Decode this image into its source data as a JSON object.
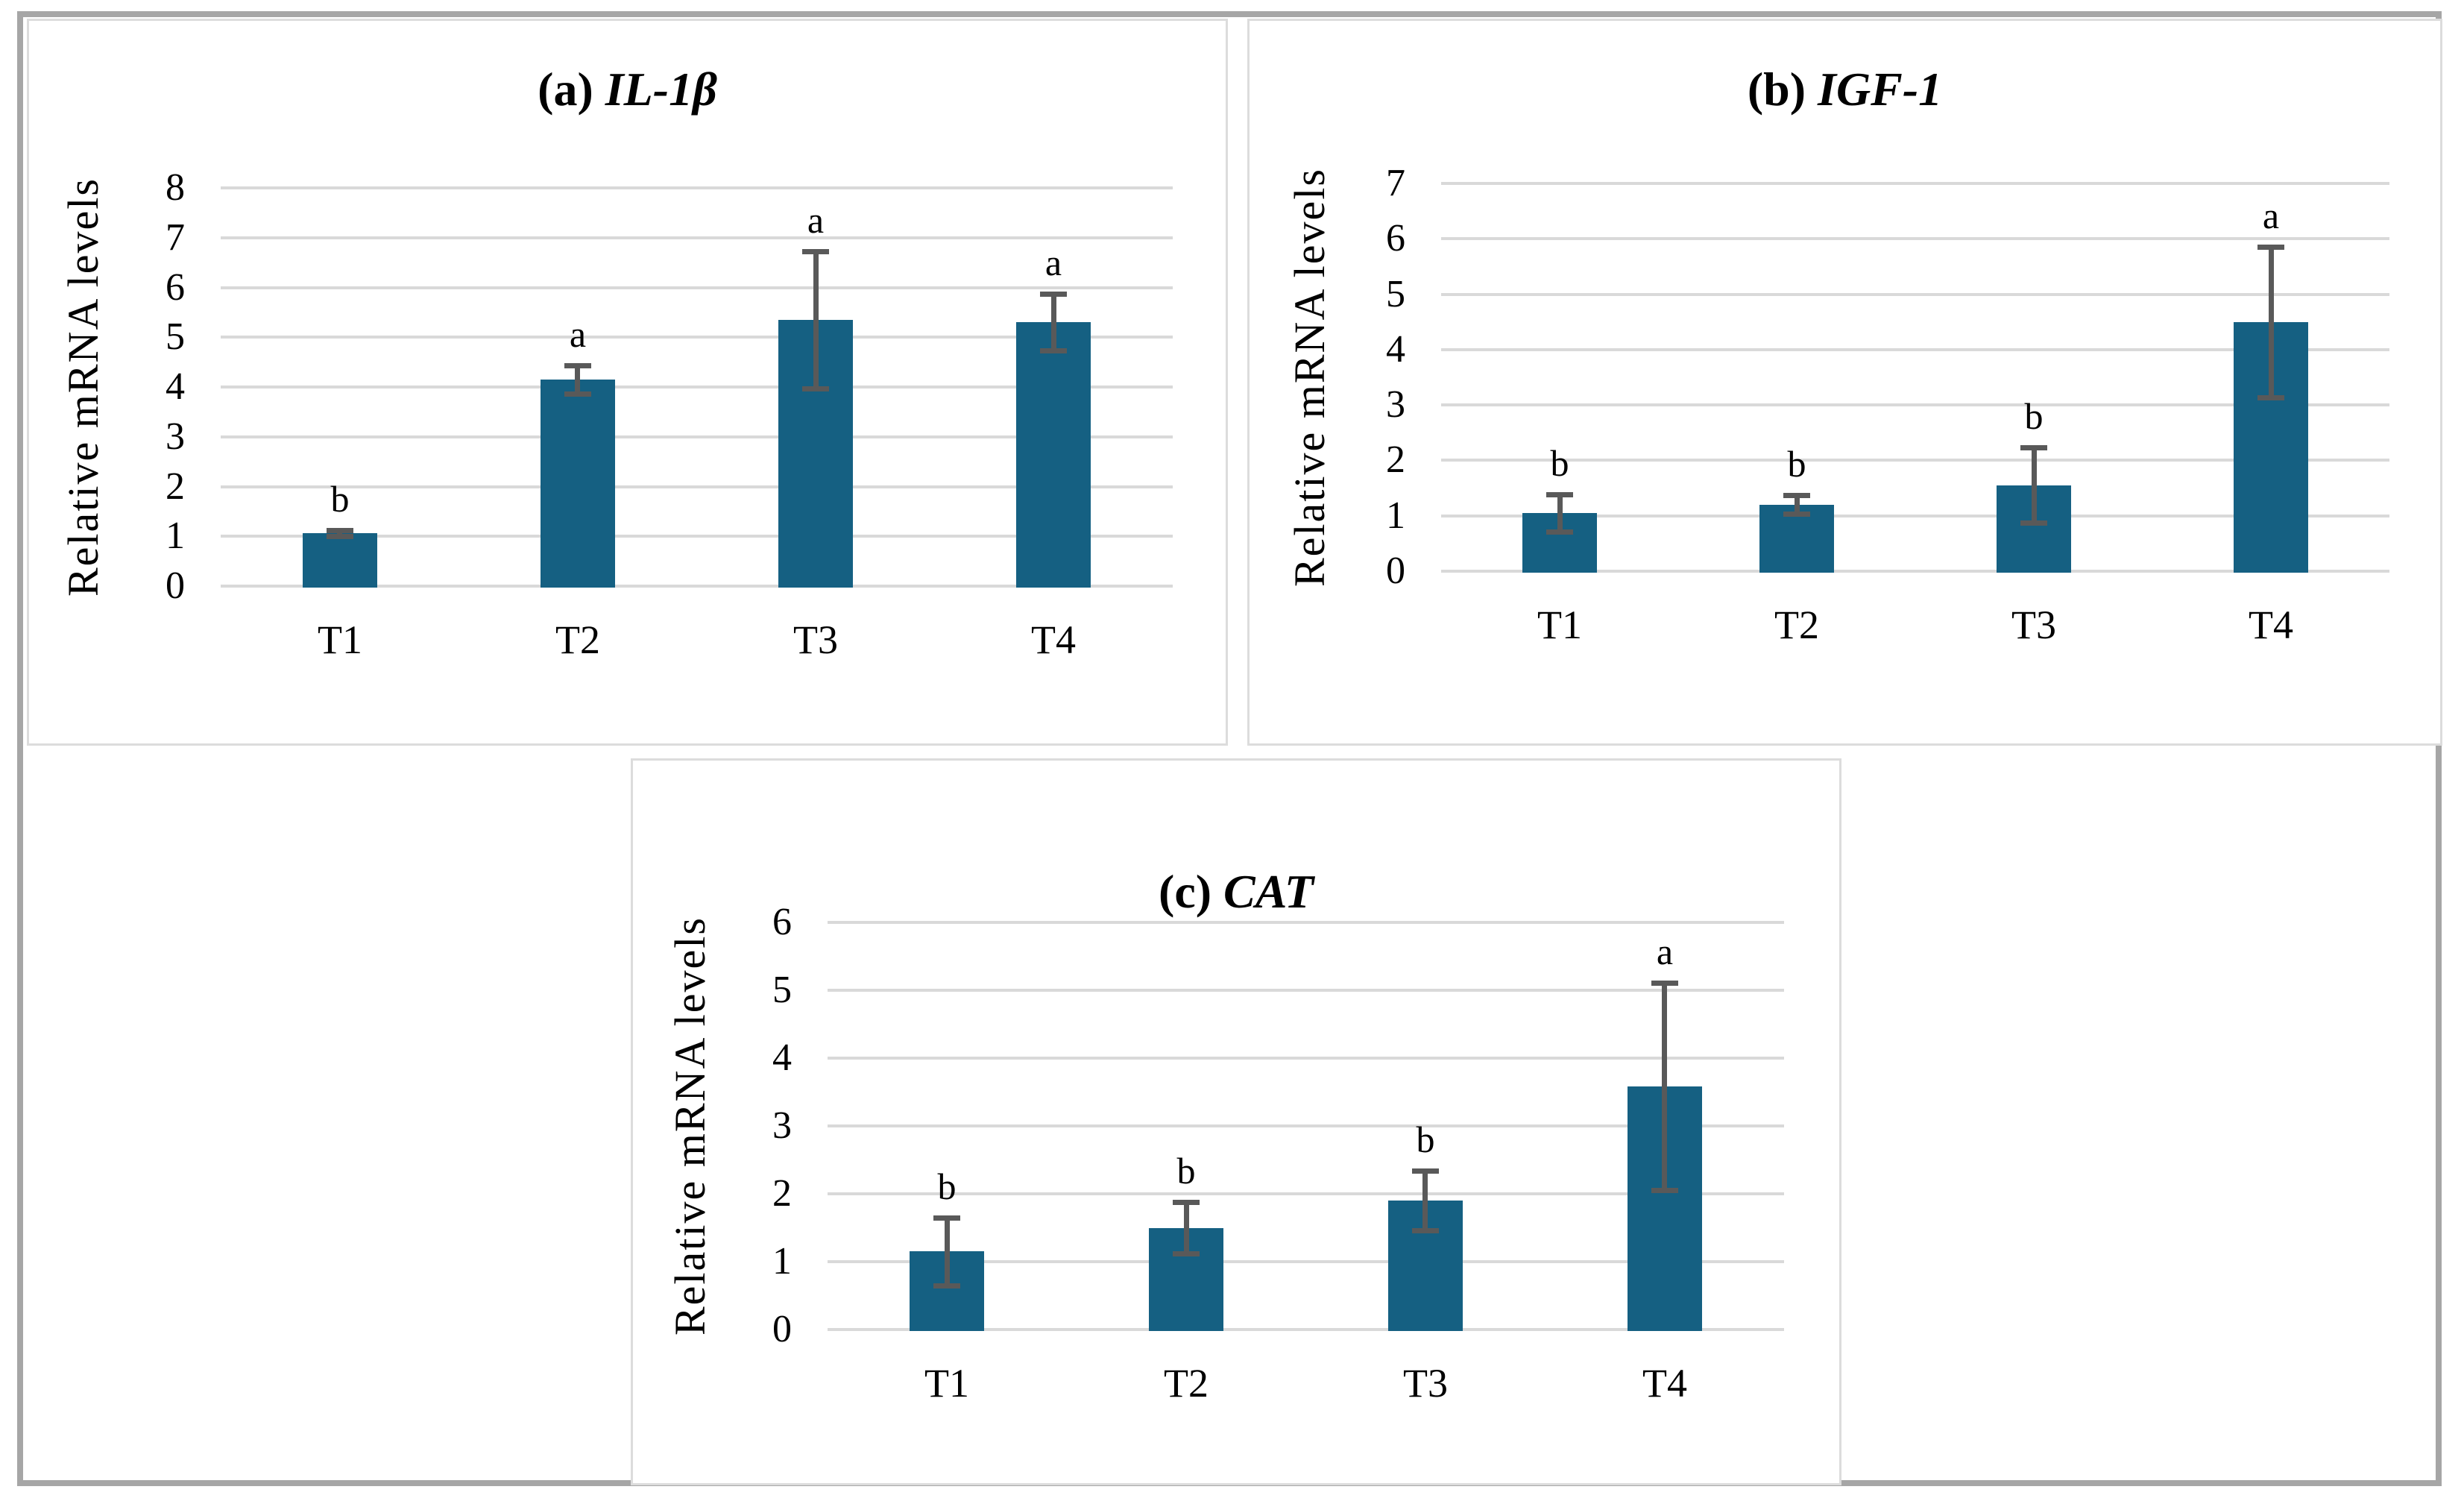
{
  "figure": {
    "description_visible_text_only": true,
    "y_axis_title": "Relative mRNA levels"
  },
  "colors": {
    "bar_fill": "#156082",
    "error_bar": "#595959",
    "gridline": "#d9d9d9",
    "panel_border": "#dcdcdc",
    "outer_border": "#a6a6a6",
    "text": "#000000"
  },
  "chart_data": [
    {
      "type": "bar",
      "title_prefix": "(a)",
      "title_gene": "IL-1β",
      "ylabel": "Relative mRNA levels",
      "xlabel": "",
      "categories": [
        "T1",
        "T2",
        "T3",
        "T4"
      ],
      "values": [
        1.07,
        4.15,
        5.35,
        5.3
      ],
      "errors": [
        0.06,
        0.28,
        1.38,
        0.57
      ],
      "sig_letters": [
        "b",
        "a",
        "a",
        "a"
      ],
      "yticks": [
        0,
        1,
        2,
        3,
        4,
        5,
        6,
        7,
        8
      ],
      "ylim": [
        0,
        8
      ],
      "grid": true,
      "legend": false
    },
    {
      "type": "bar",
      "title_prefix": "(b)",
      "title_gene": "IGF-1",
      "ylabel": "Relative mRNA levels",
      "xlabel": "",
      "categories": [
        "T1",
        "T2",
        "T3",
        "T4"
      ],
      "values": [
        1.05,
        1.2,
        1.55,
        4.5
      ],
      "errors": [
        0.33,
        0.17,
        0.68,
        1.36
      ],
      "sig_letters": [
        "b",
        "b",
        "b",
        "a"
      ],
      "yticks": [
        0,
        1,
        2,
        3,
        4,
        5,
        6,
        7
      ],
      "ylim": [
        0,
        7
      ],
      "grid": true,
      "legend": false
    },
    {
      "type": "bar",
      "title_prefix": "(c)",
      "title_gene": "CAT",
      "ylabel": "Relative mRNA levels",
      "xlabel": "",
      "categories": [
        "T1",
        "T2",
        "T3",
        "T4"
      ],
      "values": [
        1.15,
        1.5,
        1.9,
        3.58
      ],
      "errors": [
        0.5,
        0.38,
        0.44,
        1.53
      ],
      "sig_letters": [
        "b",
        "b",
        "b",
        "a"
      ],
      "yticks": [
        0,
        1,
        2,
        3,
        4,
        5,
        6
      ],
      "ylim": [
        0,
        6
      ],
      "grid": true,
      "legend": false
    }
  ]
}
